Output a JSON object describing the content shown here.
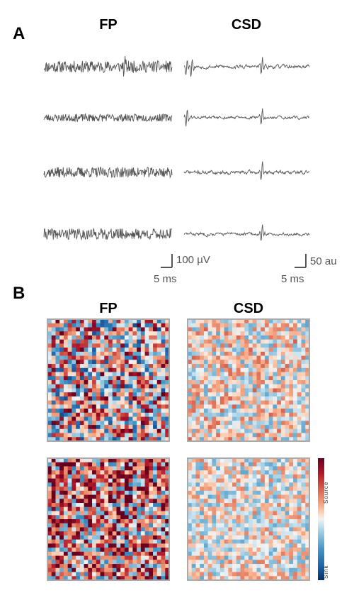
{
  "panel_a": {
    "letter": "A",
    "col_fp": "FP",
    "col_csd": "CSD",
    "fp_scale": {
      "amplitude": "100 µV",
      "time": "5 ms"
    },
    "csd_scale": {
      "amplitude": "50 au",
      "time": "5 ms"
    }
  },
  "panel_b": {
    "letter": "B",
    "col_fp": "FP",
    "col_csd": "CSD",
    "colorbar": {
      "top_label": "Source",
      "bottom_label": "Sink"
    }
  },
  "colors": {
    "trace": "#555555",
    "source": "#67001f",
    "sink": "#053061",
    "frame": "#aaaaaa"
  },
  "chart_data": [
    {
      "type": "line",
      "panel": "A-FP",
      "rows": 4,
      "series": [
        {
          "seed": 11,
          "amp": 0.85,
          "spikes": [
            0.63
          ]
        },
        {
          "seed": 23,
          "amp": 0.55,
          "spikes": []
        },
        {
          "seed": 37,
          "amp": 0.75,
          "spikes": []
        },
        {
          "seed": 41,
          "amp": 0.8,
          "spikes": []
        }
      ]
    },
    {
      "type": "line",
      "panel": "A-CSD",
      "rows": 4,
      "series": [
        {
          "seed": 53,
          "amp": 0.35,
          "spikes": [
            0.02,
            0.06,
            0.62
          ]
        },
        {
          "seed": 61,
          "amp": 0.3,
          "spikes": [
            0.02,
            0.62
          ]
        },
        {
          "seed": 71,
          "amp": 0.35,
          "spikes": [
            0.62
          ]
        },
        {
          "seed": 83,
          "amp": 0.3,
          "spikes": [
            0.62
          ]
        }
      ]
    },
    {
      "type": "heatmap",
      "panel": "B",
      "grid": 30,
      "maps": [
        {
          "name": "FP",
          "row": 0,
          "seed": 101,
          "bias": 0.1,
          "intensity": 0.95
        },
        {
          "name": "CSD",
          "row": 0,
          "seed": 131,
          "bias": 0.05,
          "intensity": 0.45
        },
        {
          "name": "FP",
          "row": 1,
          "seed": 151,
          "bias": 0.35,
          "intensity": 0.95
        },
        {
          "name": "CSD",
          "row": 1,
          "seed": 171,
          "bias": 0.0,
          "intensity": 0.4
        }
      ]
    }
  ]
}
